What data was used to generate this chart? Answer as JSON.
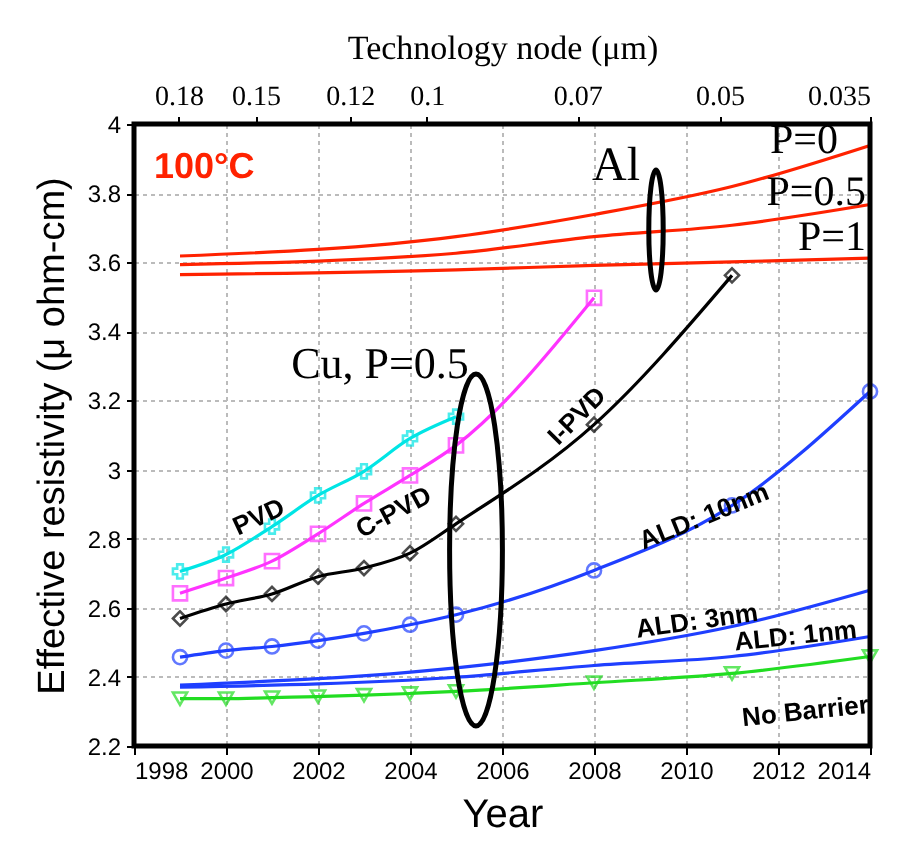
{
  "chart_data": {
    "type": "line",
    "xlabel": "Year",
    "ylabel": "Effective resistivity (μ ohm-cm)",
    "x2label": "Technology node (μm)",
    "xlim": [
      1998,
      2014
    ],
    "xticks": [
      1998,
      2000,
      2002,
      2004,
      2006,
      2008,
      2010,
      2012,
      2014
    ],
    "ylim": [
      2.2,
      4
    ],
    "yticks": [
      2.2,
      2.4,
      2.6,
      2.8,
      3,
      3.2,
      3.4,
      3.6,
      3.8,
      4
    ],
    "x2lim": [
      0.2,
      0.035
    ],
    "x2ticks": [
      0.18,
      0.15,
      0.12,
      0.1,
      0.07,
      0.05,
      0.035
    ],
    "log": "x2",
    "grid": true,
    "line_style": "solid",
    "series": [
      {
        "name": "P=0",
        "color": "#ff2200",
        "marker": "none",
        "x": [
          1999,
          2005,
          2008,
          2011,
          2014
        ],
        "values": [
          3.618,
          3.674,
          3.738,
          3.819,
          3.938
        ]
      },
      {
        "name": "P=0.5",
        "color": "#ff2200",
        "marker": "none",
        "x": [
          1999,
          2005,
          2008,
          2011,
          2014
        ],
        "values": [
          3.593,
          3.626,
          3.674,
          3.707,
          3.767
        ]
      },
      {
        "name": "P=1",
        "color": "#ff2200",
        "marker": "none",
        "x": [
          1999,
          2005,
          2008,
          2011,
          2014
        ],
        "values": [
          3.564,
          3.578,
          3.591,
          3.601,
          3.612
        ]
      },
      {
        "name": "PVD",
        "color": "#00e5e5",
        "marker": "cross",
        "x": [
          1999,
          2000,
          2001,
          2002,
          2003,
          2004,
          2005
        ],
        "values": [
          2.705,
          2.754,
          2.835,
          2.925,
          2.995,
          3.09,
          3.153
        ]
      },
      {
        "name": "C-PVD",
        "color": "#ff33ff",
        "marker": "square",
        "x": [
          1999,
          2000,
          2001,
          2002,
          2003,
          2004,
          2005,
          2008
        ],
        "values": [
          2.642,
          2.686,
          2.735,
          2.814,
          2.902,
          2.983,
          3.07,
          3.497
        ]
      },
      {
        "name": "I-PVD",
        "color": "#000000",
        "marker": "diamond",
        "x": [
          1999,
          2000,
          2001,
          2002,
          2003,
          2004,
          2005,
          2008,
          2011
        ],
        "values": [
          2.569,
          2.611,
          2.64,
          2.69,
          2.715,
          2.758,
          2.843,
          3.13,
          3.562
        ]
      },
      {
        "name": "ALD: 10nm",
        "color": "#1f3fff",
        "marker": "circle",
        "x": [
          1999,
          2000,
          2001,
          2002,
          2003,
          2004,
          2005,
          2008,
          2011,
          2014
        ],
        "values": [
          2.457,
          2.476,
          2.488,
          2.505,
          2.526,
          2.551,
          2.58,
          2.708,
          2.896,
          3.226
        ]
      },
      {
        "name": "ALD: 3nm",
        "color": "#1f3fff",
        "marker": "none",
        "x": [
          1999,
          2005,
          2008,
          2011,
          2014
        ],
        "values": [
          2.376,
          2.426,
          2.476,
          2.546,
          2.651
        ]
      },
      {
        "name": "ALD: 1nm",
        "color": "#1f3fff",
        "marker": "none",
        "x": [
          1999,
          2005,
          2008,
          2011,
          2014
        ],
        "values": [
          2.37,
          2.399,
          2.433,
          2.459,
          2.517
        ]
      },
      {
        "name": "No Barrier",
        "color": "#22dd22",
        "marker": "triangle",
        "x": [
          1999,
          2000,
          2001,
          2002,
          2003,
          2004,
          2005,
          2008,
          2011,
          2014
        ],
        "values": [
          2.337,
          2.337,
          2.34,
          2.343,
          2.347,
          2.352,
          2.358,
          2.383,
          2.41,
          2.459
        ]
      }
    ],
    "annotations": [
      "100°C",
      "Al",
      "Cu, P=0.5"
    ]
  }
}
